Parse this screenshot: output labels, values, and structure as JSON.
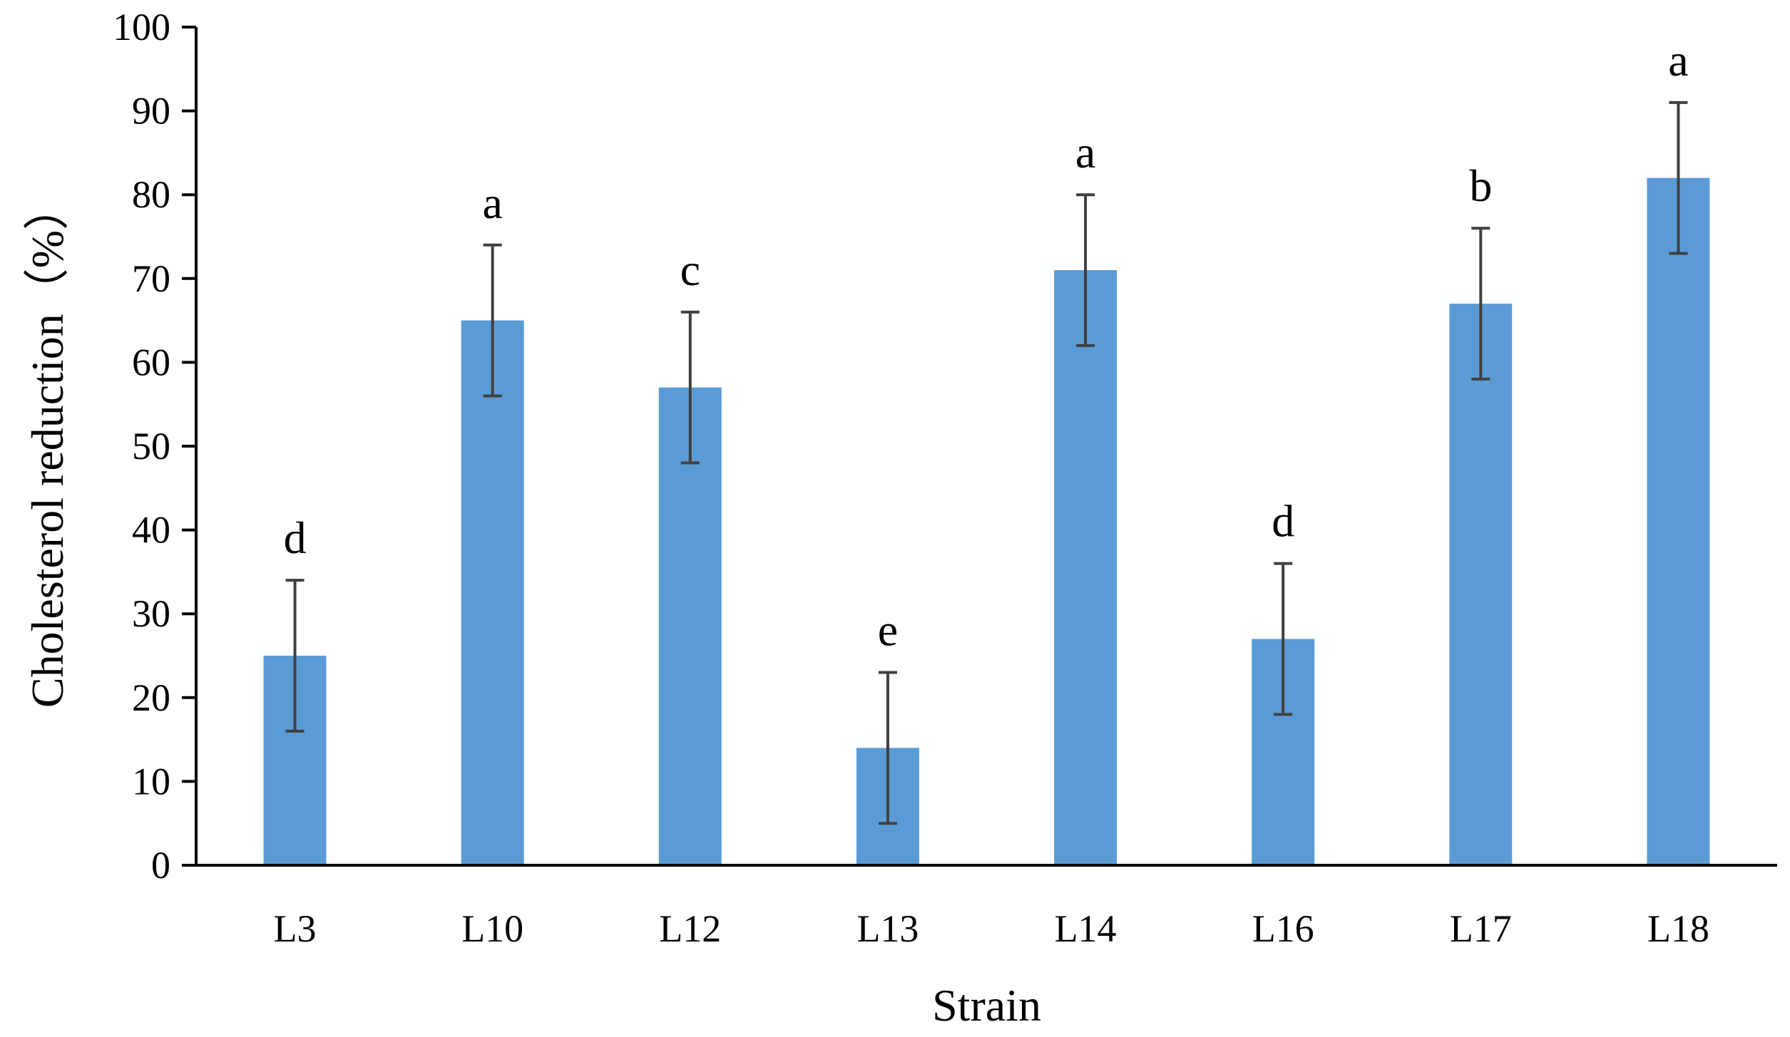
{
  "chart_data": {
    "type": "bar",
    "title": "",
    "xlabel": "Strain",
    "ylabel": "Cholesterol reduction（%）",
    "categories": [
      "L3",
      "L10",
      "L12",
      "L13",
      "L14",
      "L16",
      "L17",
      "L18"
    ],
    "values": [
      25,
      65,
      57,
      14,
      71,
      27,
      67,
      82
    ],
    "errors": [
      9,
      9,
      9,
      9,
      9,
      9,
      9,
      9
    ],
    "significance": [
      "d",
      "a",
      "c",
      "e",
      "a",
      "d",
      "b",
      "a"
    ],
    "ylim": [
      0,
      100
    ],
    "yticks": [
      0,
      10,
      20,
      30,
      40,
      50,
      60,
      70,
      80,
      90,
      100
    ],
    "grid": false,
    "legend": "none",
    "bar_color": "#5B9BD5",
    "error_color": "#404040"
  }
}
